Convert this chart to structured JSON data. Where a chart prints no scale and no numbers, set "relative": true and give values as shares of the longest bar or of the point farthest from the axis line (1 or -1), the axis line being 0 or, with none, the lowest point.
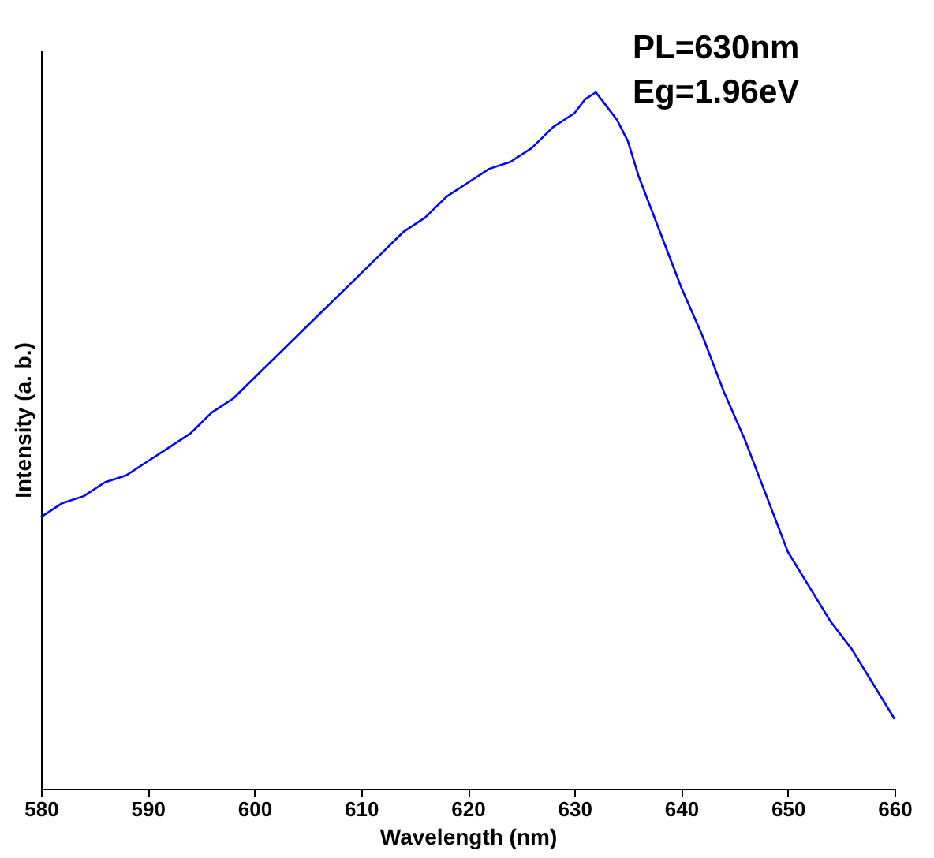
{
  "chart_data": {
    "type": "line",
    "relative": true,
    "xlabel": "Wavelength (nm)",
    "ylabel": "Intensity (a. b.)",
    "x": [
      580,
      582,
      584,
      586,
      588,
      590,
      592,
      594,
      596,
      598,
      600,
      602,
      604,
      606,
      608,
      610,
      612,
      614,
      616,
      618,
      620,
      622,
      624,
      626,
      628,
      630,
      631,
      632,
      633,
      634,
      635,
      636,
      638,
      640,
      642,
      644,
      646,
      648,
      650,
      652,
      654,
      656,
      658,
      660
    ],
    "series": [
      {
        "color": "#0000ff",
        "values": [
          0.39,
          0.41,
          0.42,
          0.44,
          0.45,
          0.47,
          0.49,
          0.51,
          0.54,
          0.56,
          0.59,
          0.62,
          0.65,
          0.68,
          0.71,
          0.74,
          0.77,
          0.8,
          0.82,
          0.85,
          0.87,
          0.89,
          0.9,
          0.92,
          0.95,
          0.97,
          0.99,
          1.0,
          0.98,
          0.96,
          0.93,
          0.88,
          0.8,
          0.72,
          0.65,
          0.57,
          0.5,
          0.42,
          0.34,
          0.29,
          0.24,
          0.2,
          0.15,
          0.1
        ]
      }
    ],
    "xlim": [
      580,
      660
    ],
    "xticks": [
      580,
      590,
      600,
      610,
      620,
      630,
      640,
      650,
      660
    ],
    "annotations": [
      "PL=630nm",
      "Eg=1.96eV"
    ],
    "grid": false,
    "line_style": "solid",
    "marker": "none"
  }
}
